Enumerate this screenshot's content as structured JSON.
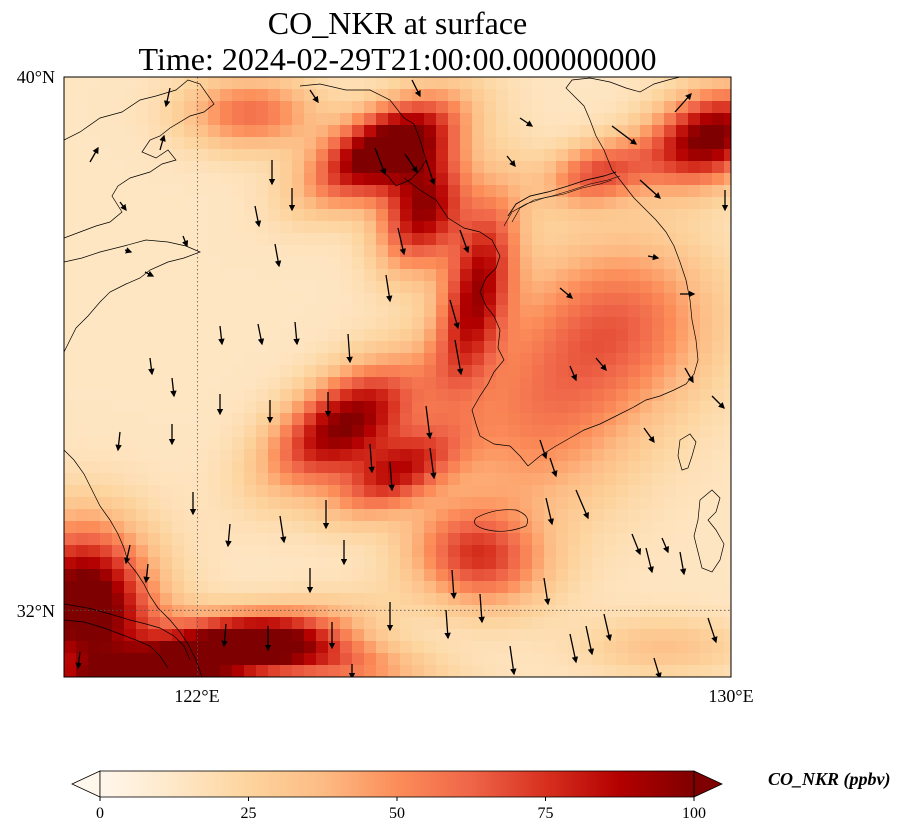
{
  "title": {
    "line1": "CO_NKR at surface",
    "line2": "Time: 2024-02-29T21:00:00.000000000"
  },
  "map": {
    "extent": {
      "lon_min": 120.0,
      "lon_max": 130.0,
      "lat_min": 31.0,
      "lat_max": 40.0
    },
    "lat_ticks": [
      {
        "value": 40,
        "label": "40°N"
      },
      {
        "value": 32,
        "label": "32°N"
      }
    ],
    "lon_ticks": [
      {
        "value": 122,
        "label": "122°E"
      },
      {
        "value": 130,
        "label": "130°E"
      }
    ],
    "gridlines": "dotted",
    "wind_vectors": "shown"
  },
  "colorbar": {
    "label": "CO_NKR (ppbv)",
    "min": 0,
    "max": 100,
    "ticks": [
      0,
      25,
      50,
      75,
      100
    ],
    "extend": "both",
    "colormap": "OrRd",
    "colors": [
      "#fff7ec",
      "#fee8c8",
      "#fdd49e",
      "#fdbb84",
      "#fc8d59",
      "#ef6548",
      "#d7301f",
      "#b30000",
      "#7f0000"
    ]
  }
}
